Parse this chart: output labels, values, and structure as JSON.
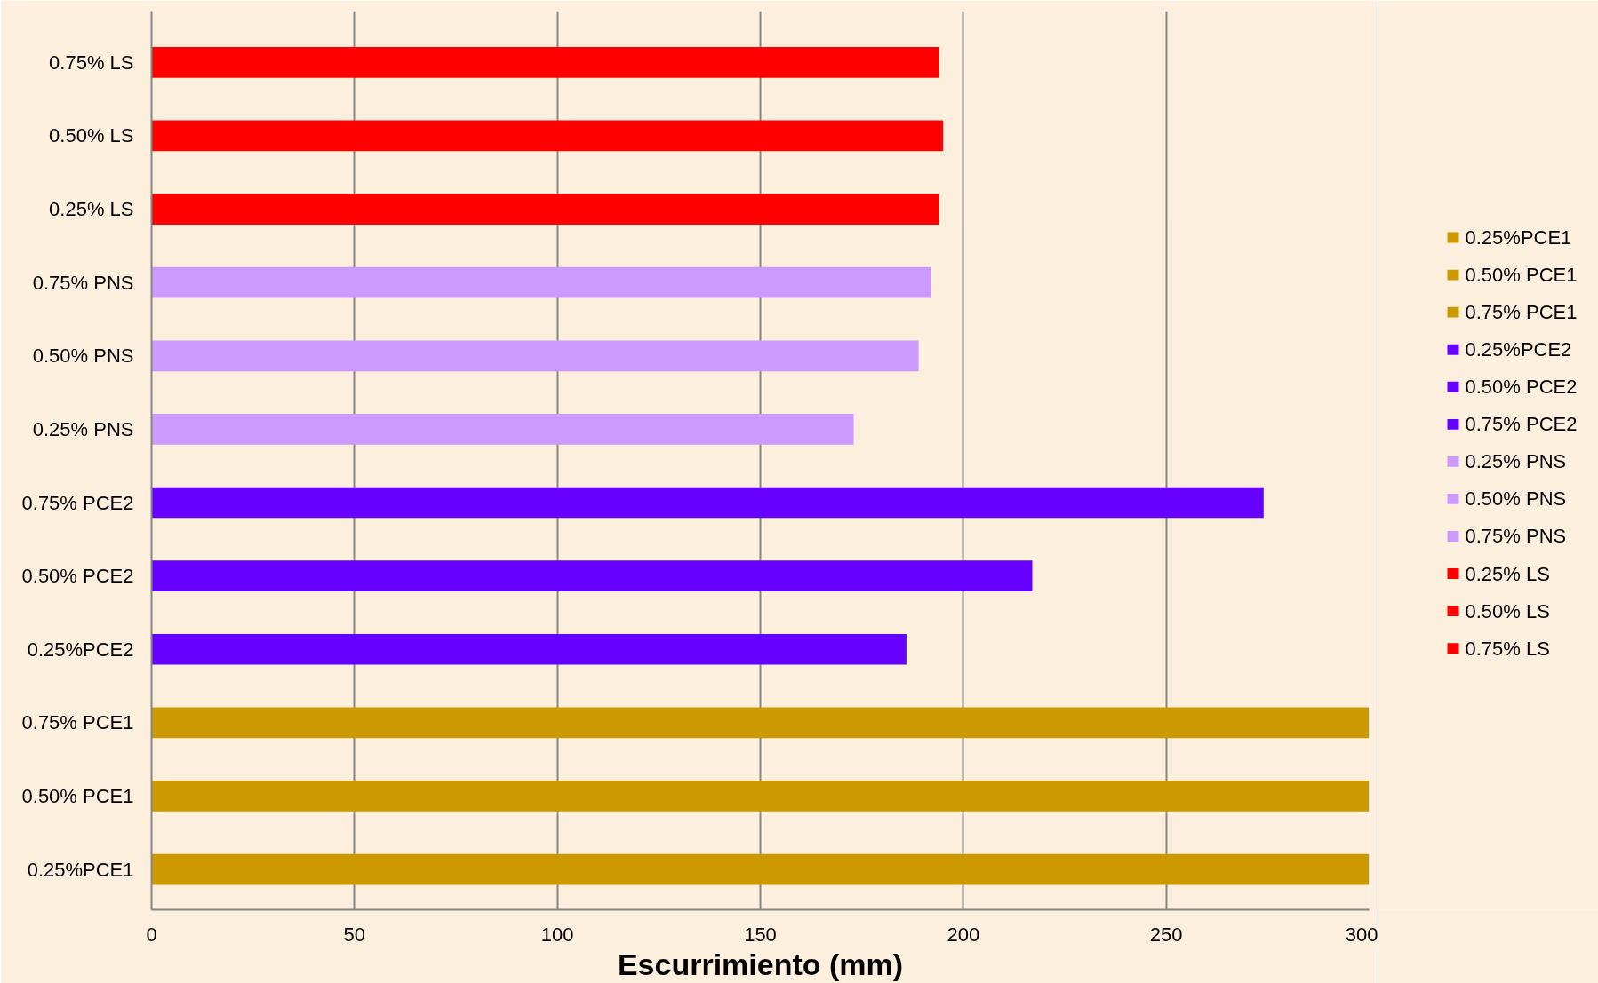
{
  "chart_data": {
    "type": "bar",
    "orientation": "horizontal",
    "stacked": true,
    "xlabel": "Escurrimiento (mm)",
    "categories": [
      "0.75% LS",
      "0.50% LS",
      "0.25% LS",
      "0.75% PNS",
      "0.50% PNS",
      "0.25% PNS",
      "0.75% PCE2",
      "0.50% PCE2",
      "0.25%PCE2",
      "0.75% PCE1",
      "0.50% PCE1",
      "0.25%PCE1"
    ],
    "series": [
      {
        "name": "0.25%PCE1",
        "color": "#cc9900",
        "values": [
          null,
          null,
          null,
          null,
          null,
          null,
          null,
          null,
          null,
          null,
          null,
          300
        ]
      },
      {
        "name": "0.50% PCE1",
        "color": "#cc9900",
        "values": [
          null,
          null,
          null,
          null,
          null,
          null,
          null,
          null,
          null,
          null,
          300,
          null
        ]
      },
      {
        "name": "0.75% PCE1",
        "color": "#cc9900",
        "values": [
          null,
          null,
          null,
          null,
          null,
          null,
          null,
          null,
          null,
          300,
          null,
          null
        ]
      },
      {
        "name": "0.25%PCE2",
        "color": "#6600ff",
        "values": [
          null,
          null,
          null,
          null,
          null,
          null,
          null,
          null,
          186,
          null,
          null,
          null
        ]
      },
      {
        "name": "0.50% PCE2",
        "color": "#6600ff",
        "values": [
          null,
          null,
          null,
          null,
          null,
          null,
          null,
          217,
          null,
          null,
          null,
          null
        ]
      },
      {
        "name": "0.75% PCE2",
        "color": "#6600ff",
        "values": [
          null,
          null,
          null,
          null,
          null,
          null,
          274,
          null,
          null,
          null,
          null,
          null
        ]
      },
      {
        "name": "0.25% PNS",
        "color": "#cc99ff",
        "values": [
          null,
          null,
          null,
          null,
          null,
          173,
          null,
          null,
          null,
          null,
          null,
          null
        ]
      },
      {
        "name": "0.50% PNS",
        "color": "#cc99ff",
        "values": [
          null,
          null,
          null,
          null,
          189,
          null,
          null,
          null,
          null,
          null,
          null,
          null
        ]
      },
      {
        "name": "0.75% PNS",
        "color": "#cc99ff",
        "values": [
          null,
          null,
          null,
          192,
          null,
          null,
          null,
          null,
          null,
          null,
          null,
          null
        ]
      },
      {
        "name": "0.25% LS",
        "color": "#ff0000",
        "values": [
          null,
          null,
          194,
          null,
          null,
          null,
          null,
          null,
          null,
          null,
          null,
          null
        ]
      },
      {
        "name": "0.50% LS",
        "color": "#ff0000",
        "values": [
          null,
          195,
          null,
          null,
          null,
          null,
          null,
          null,
          null,
          null,
          null,
          null
        ]
      },
      {
        "name": "0.75% LS",
        "color": "#ff0000",
        "values": [
          194,
          null,
          null,
          null,
          null,
          null,
          null,
          null,
          null,
          null,
          null,
          null
        ]
      }
    ],
    "xlim": [
      0,
      300
    ],
    "xticks": [
      0,
      50,
      100,
      150,
      200,
      250,
      300
    ],
    "grid": "x",
    "legend": "right"
  }
}
